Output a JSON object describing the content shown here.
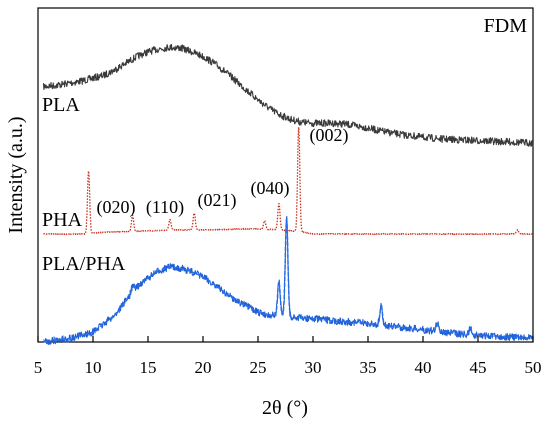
{
  "chart_data": {
    "type": "line",
    "panel_label": "FDM",
    "xlabel": "2θ (°)",
    "ylabel": "Intensity (a.u.)",
    "xlim": [
      5,
      50
    ],
    "x_ticks": [
      5,
      10,
      15,
      20,
      25,
      30,
      35,
      40,
      45,
      50
    ],
    "y_ticks_shown": false,
    "grid": false,
    "series": [
      {
        "name": "PLA",
        "color": "#3a3a3a",
        "style": "solid",
        "points": [
          [
            5.5,
            0.6
          ],
          [
            7,
            0.62
          ],
          [
            9,
            0.66
          ],
          [
            11,
            0.72
          ],
          [
            12,
            0.78
          ],
          [
            13,
            0.85
          ],
          [
            14,
            0.92
          ],
          [
            15,
            0.97
          ],
          [
            16,
            1.0
          ],
          [
            17,
            1.02
          ],
          [
            18,
            1.01
          ],
          [
            19,
            0.97
          ],
          [
            20,
            0.92
          ],
          [
            21,
            0.85
          ],
          [
            22,
            0.76
          ],
          [
            23,
            0.66
          ],
          [
            24,
            0.56
          ],
          [
            25,
            0.46
          ],
          [
            26,
            0.37
          ],
          [
            27,
            0.3
          ],
          [
            28,
            0.25
          ],
          [
            29,
            0.22
          ],
          [
            30,
            0.21
          ],
          [
            31,
            0.21
          ],
          [
            32,
            0.21
          ],
          [
            33,
            0.2
          ],
          [
            34,
            0.18
          ],
          [
            35,
            0.16
          ],
          [
            36,
            0.13
          ],
          [
            38,
            0.09
          ],
          [
            40,
            0.06
          ],
          [
            42,
            0.04
          ],
          [
            44,
            0.03
          ],
          [
            46,
            0.02
          ],
          [
            48,
            0.01
          ],
          [
            50,
            0.0
          ]
        ]
      },
      {
        "name": "PHA",
        "color": "#c8321e",
        "style": "dotted",
        "baseline": [
          [
            5.5,
            0.0
          ],
          [
            9.5,
            0.0
          ],
          [
            10,
            0.01
          ],
          [
            12,
            0.02
          ],
          [
            15,
            0.03
          ],
          [
            18,
            0.04
          ],
          [
            21,
            0.04
          ],
          [
            24,
            0.05
          ],
          [
            27,
            0.04
          ],
          [
            29,
            0.02
          ],
          [
            30,
            0.0
          ],
          [
            50,
            0.0
          ]
        ],
        "peaks": [
          {
            "x": 9.6,
            "height": 0.6,
            "label": ""
          },
          {
            "x": 13.6,
            "height": 0.15,
            "label": "(020)"
          },
          {
            "x": 17.0,
            "height": 0.1,
            "label": "(110)"
          },
          {
            "x": 19.2,
            "height": 0.16,
            "label": "(021)"
          },
          {
            "x": 25.6,
            "height": 0.08,
            "label": ""
          },
          {
            "x": 26.9,
            "height": 0.25,
            "label": "(040)"
          },
          {
            "x": 28.7,
            "height": 1.0,
            "label": "(002)"
          },
          {
            "x": 48.6,
            "height": 0.04,
            "label": ""
          }
        ]
      },
      {
        "name": "PLA/PHA",
        "color": "#1f5fd6",
        "style": "mixed",
        "points": [
          [
            5.5,
            0.0
          ],
          [
            8,
            0.03
          ],
          [
            10,
            0.08
          ],
          [
            12,
            0.22
          ],
          [
            13,
            0.34
          ],
          [
            14,
            0.45
          ],
          [
            15,
            0.52
          ],
          [
            16,
            0.58
          ],
          [
            17,
            0.61
          ],
          [
            18,
            0.6
          ],
          [
            19,
            0.57
          ],
          [
            20,
            0.53
          ],
          [
            21,
            0.47
          ],
          [
            22,
            0.4
          ],
          [
            23,
            0.34
          ],
          [
            24,
            0.29
          ],
          [
            25,
            0.24
          ],
          [
            26,
            0.22
          ],
          [
            27,
            0.21
          ],
          [
            28,
            0.2
          ],
          [
            30,
            0.19
          ],
          [
            32,
            0.17
          ],
          [
            34,
            0.16
          ],
          [
            36,
            0.14
          ],
          [
            38,
            0.12
          ],
          [
            40,
            0.1
          ],
          [
            42,
            0.08
          ],
          [
            44,
            0.06
          ],
          [
            46,
            0.05
          ],
          [
            48,
            0.04
          ],
          [
            50,
            0.03
          ]
        ],
        "peaks": [
          {
            "x": 13.6,
            "height": 0.05
          },
          {
            "x": 26.9,
            "height": 0.28
          },
          {
            "x": 27.6,
            "height": 0.8
          },
          {
            "x": 36.2,
            "height": 0.15
          },
          {
            "x": 41.3,
            "height": 0.07
          },
          {
            "x": 44.3,
            "height": 0.05
          }
        ]
      }
    ],
    "labels": {
      "pla": "PLA",
      "pha": "PHA",
      "plapha": "PLA/PHA"
    }
  }
}
